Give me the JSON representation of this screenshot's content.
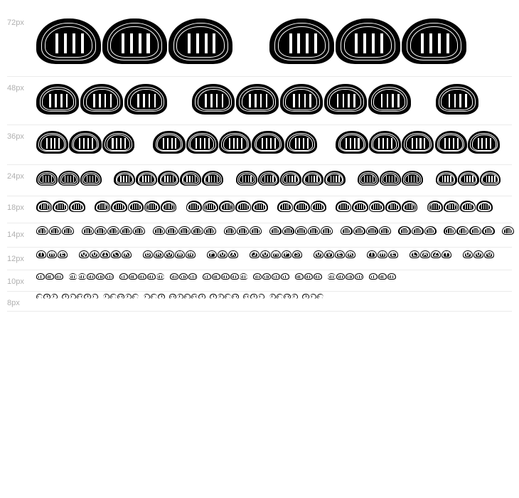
{
  "sample_text": "THE QUICK BROWN FOX JUMPS OVER THE LAZY DOG",
  "rows": [
    {
      "label": "72px",
      "size": 72
    },
    {
      "label": "48px",
      "size": 48
    },
    {
      "label": "36px",
      "size": 36
    },
    {
      "label": "24px",
      "size": 24
    },
    {
      "label": "18px",
      "size": 18
    },
    {
      "label": "14px",
      "size": 14
    },
    {
      "label": "12px",
      "size": 12
    },
    {
      "label": "10px",
      "size": 10
    },
    {
      "label": "8px",
      "size": 8
    }
  ]
}
